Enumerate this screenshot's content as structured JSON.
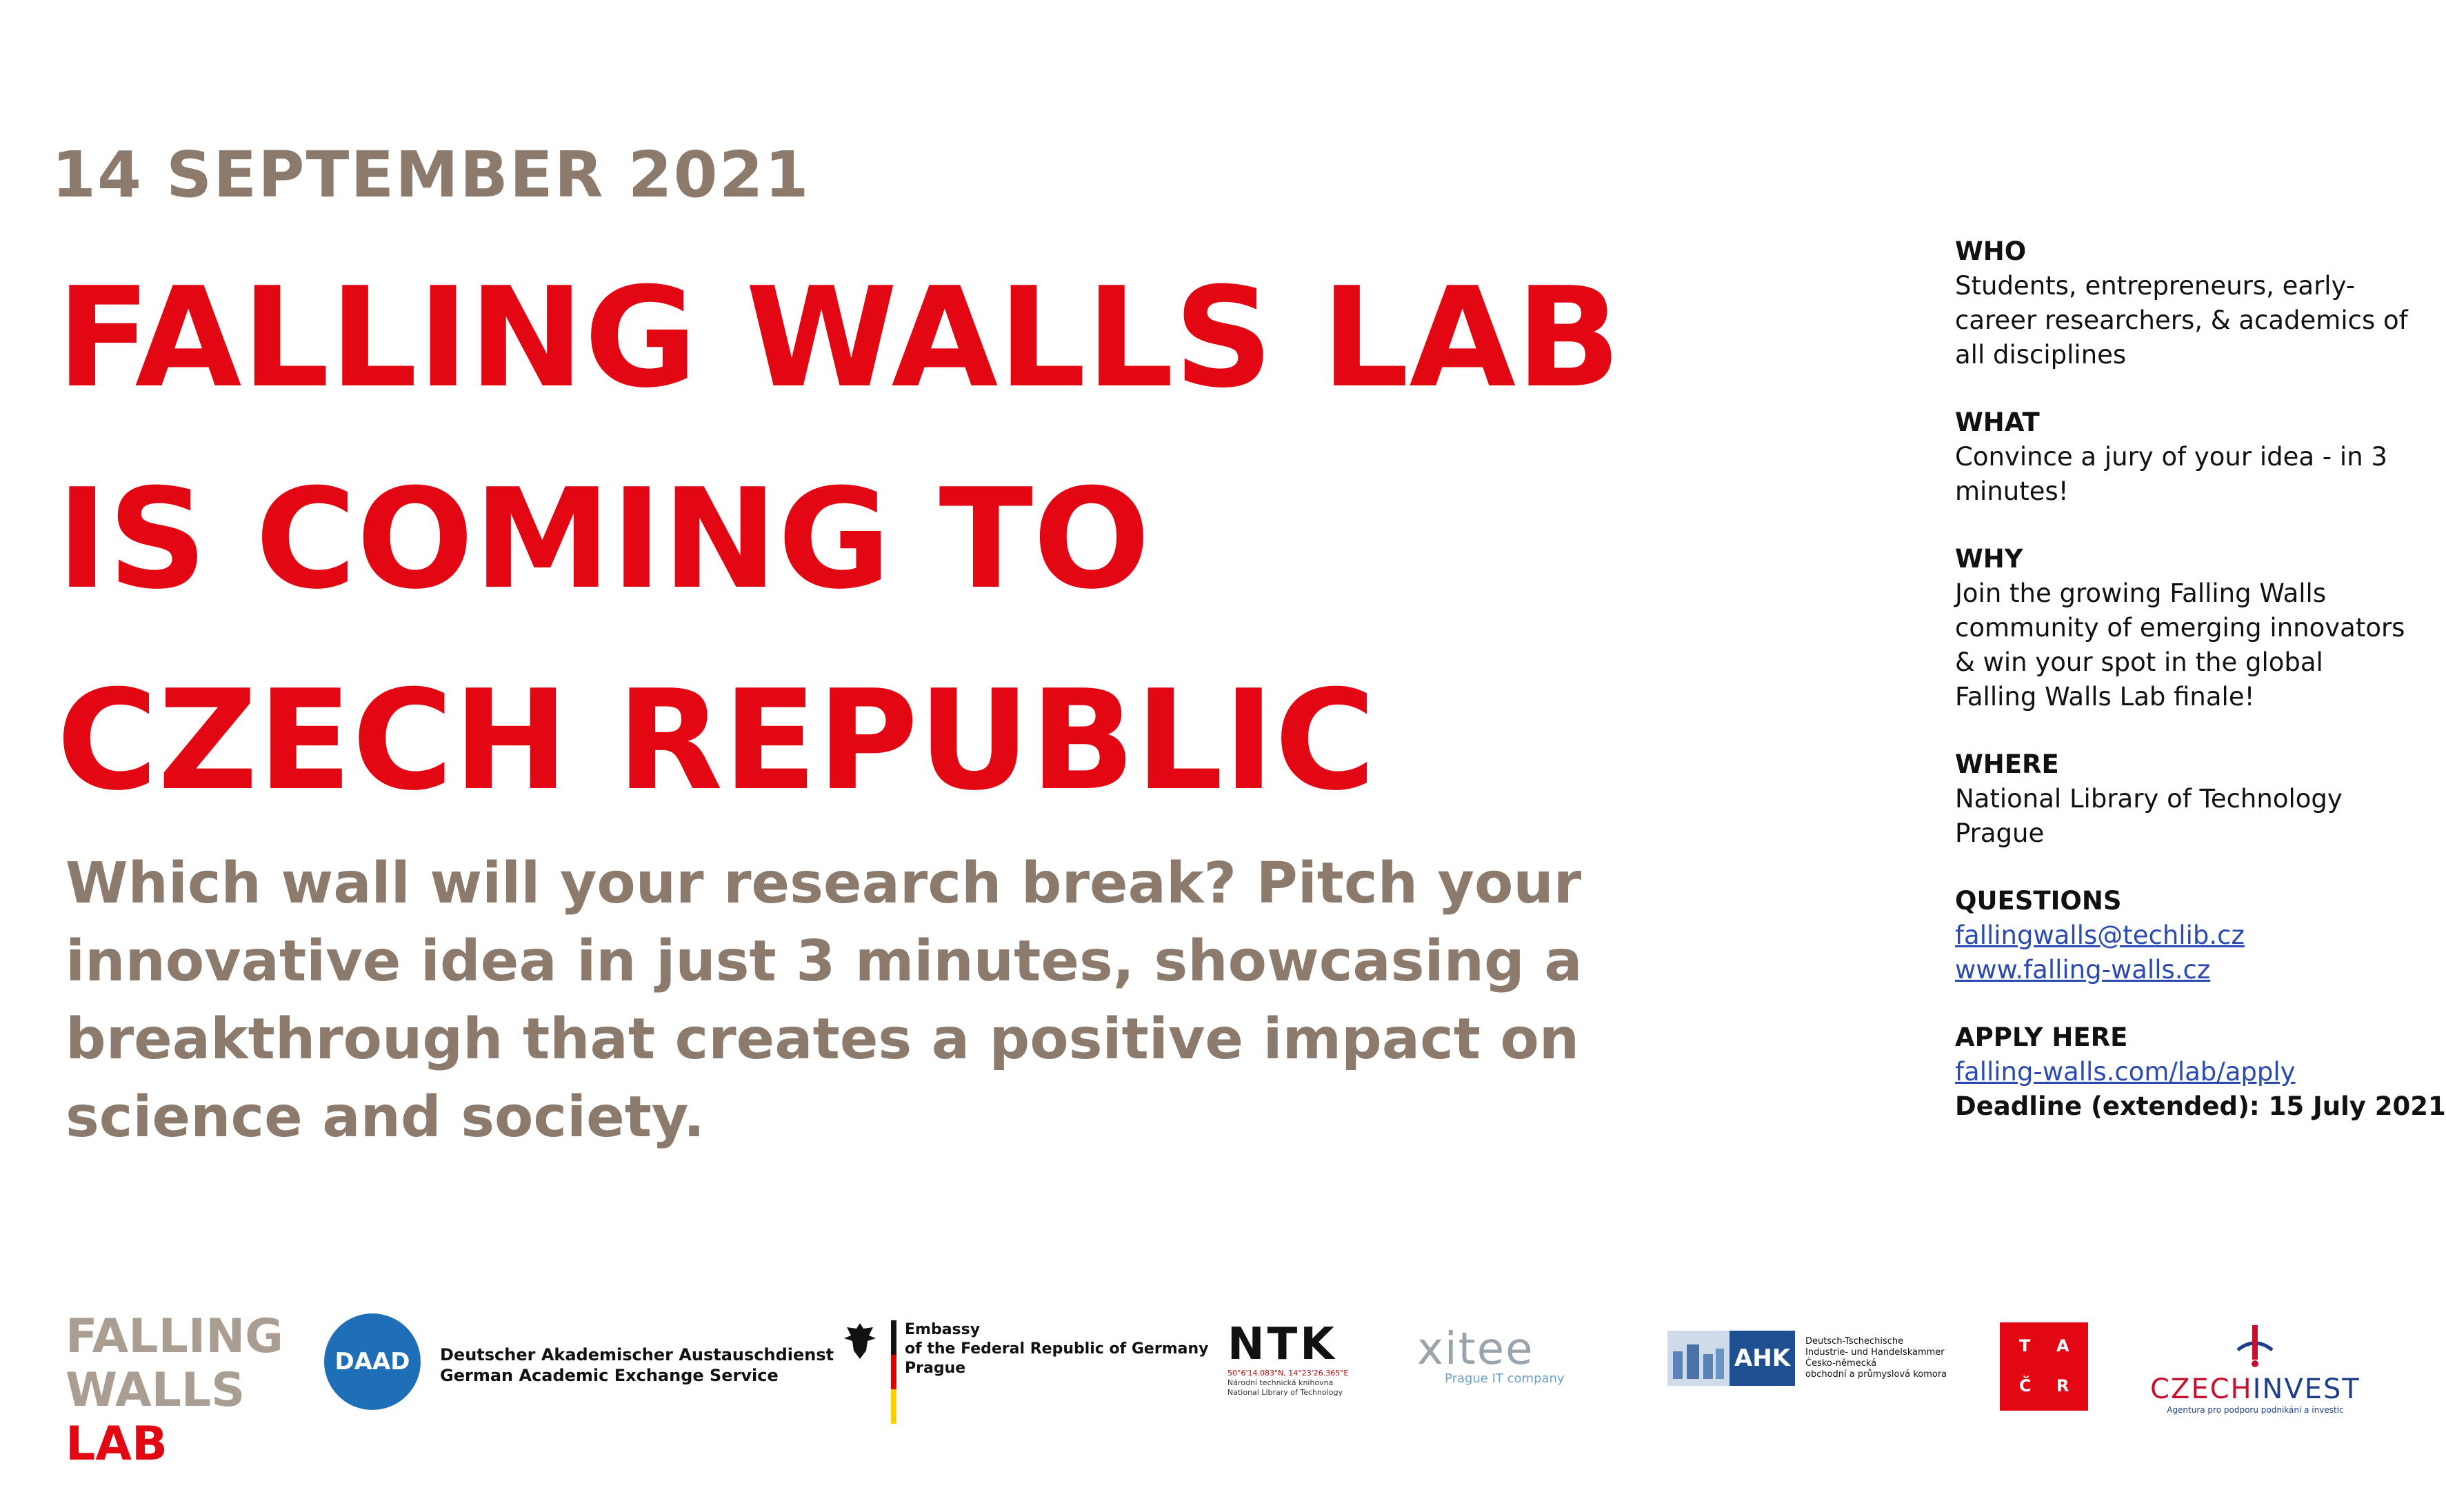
{
  "date": "14 SEPTEMBER 2021",
  "headline": [
    "FALLING WALLS LAB",
    "IS COMING TO",
    "CZECH REPUBLIC"
  ],
  "subtitle": "Which wall will your research break? Pitch your innovative idea in just 3 minutes, showcasing a breakthrough that creates a positive impact on science and society.",
  "info": {
    "who_label": "WHO",
    "who_text": "Students, entrepreneurs, early-career researchers, & academics of all disciplines",
    "what_label": "WHAT",
    "what_text": "Convince a jury of your idea - in 3 minutes!",
    "why_label": "WHY",
    "why_text": "Join the growing Falling Walls community of emerging innovators & win your spot in the global Falling Walls Lab finale!",
    "where_label": "WHERE",
    "where_text": "National Library of Technology Prague",
    "questions_label": "QUESTIONS",
    "questions_email": "fallingwalls@techlib.cz",
    "questions_web": "www.falling-walls.cz",
    "apply_label": "APPLY HERE",
    "apply_link": "falling-walls.com/lab/apply",
    "deadline": "Deadline (extended): 15 July 2021"
  },
  "logos": {
    "fwl": [
      "FALLING",
      "WALLS",
      "LAB"
    ],
    "daad_mark": "DAAD",
    "daad_line1": "Deutscher Akademischer Austauschdienst",
    "daad_line2": "German Academic Exchange Service",
    "embassy_line1": "Embassy",
    "embassy_line2": "of the Federal Republic of Germany",
    "embassy_line3": "Prague",
    "ntk_mark": "NTK",
    "ntk_coords": "50°6'14.083\"N, 14°23'26.365\"E",
    "ntk_line1": "Národní technická knihovna",
    "ntk_line2": "National Library of Technology",
    "itee_mark": "xitee",
    "itee_tagline": "Prague IT company",
    "ahk_mark": "AHK",
    "ahk_line1": "Deutsch-Tschechische",
    "ahk_line2": "Industrie- und Handelskammer",
    "ahk_line3": "Česko-německá",
    "ahk_line4": "obchodní a průmyslová komora",
    "tacr_letters": [
      "T",
      "A",
      "Č",
      "R"
    ],
    "czechinvest_part1": "CZECH",
    "czechinvest_part2": "INVEST",
    "czechinvest_tagline": "Agentura pro podporu podnikání a investic"
  },
  "colors": {
    "red": "#e30613",
    "taupe": "#8c7b6c",
    "link": "#2a4ab0"
  }
}
